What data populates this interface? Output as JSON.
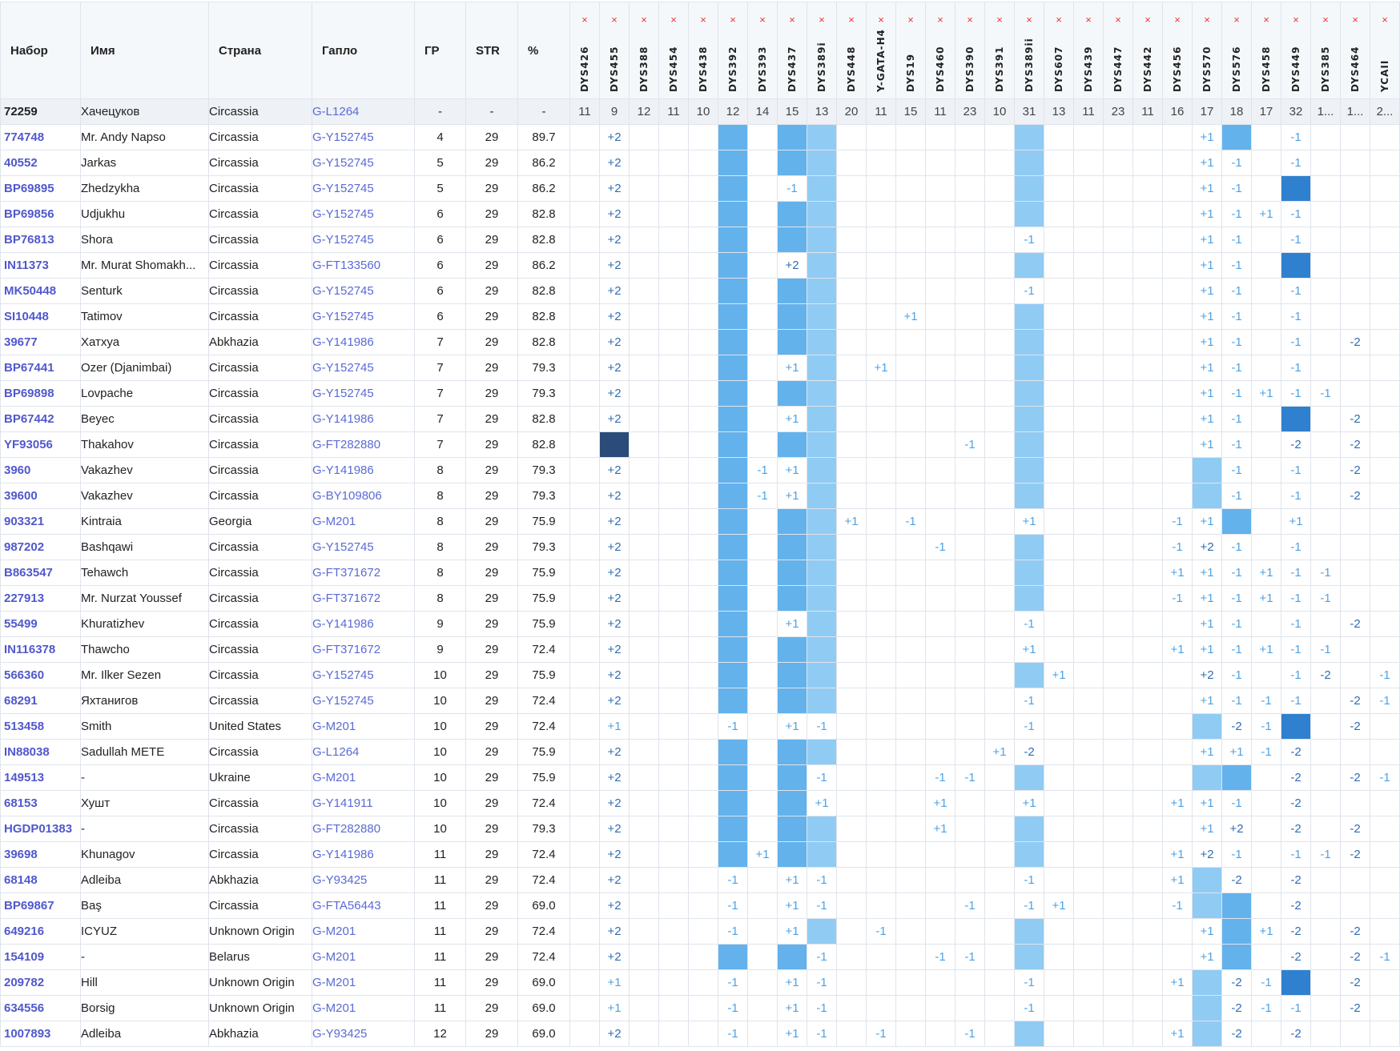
{
  "columns": {
    "kit": "Набор",
    "name": "Имя",
    "country": "Страна",
    "haplo": "Гапло",
    "gd": "ГР",
    "str": "STR",
    "pct": "%"
  },
  "remove_marker_symbol": "×",
  "markers": [
    "DYS426",
    "DYS455",
    "DYS388",
    "DYS454",
    "DYS438",
    "DYS392",
    "DYS393",
    "DYS437",
    "DYS389i",
    "DYS448",
    "Y-GATA-H4",
    "DYS19",
    "DYS460",
    "DYS390",
    "DYS391",
    "DYS389ii",
    "DYS607",
    "DYS439",
    "DYS447",
    "DYS442",
    "DYS456",
    "DYS570",
    "DYS576",
    "DYS458",
    "DYS449",
    "DYS385",
    "DYS464",
    "YCAII"
  ],
  "colors": {
    "fill_M": "#63b2ec",
    "fill_L": "#90cbf4",
    "fill_D": "#2f80cf",
    "fill_N": "#2b4c7a",
    "link": "#5058cc",
    "remove": "#e53935"
  },
  "reference": {
    "kit": "72259",
    "name": "Хачецуков",
    "country": "Circassia",
    "haplo": "G-L1264",
    "gd": "-",
    "str": "-",
    "pct": "-",
    "values": [
      "11",
      "9",
      "12",
      "11",
      "10",
      "12",
      "14",
      "15",
      "13",
      "20",
      "11",
      "15",
      "11",
      "23",
      "10",
      "31",
      "13",
      "11",
      "23",
      "11",
      "16",
      "17",
      "18",
      "17",
      "32",
      "1...",
      "1...",
      "2..."
    ]
  },
  "rows": [
    {
      "kit": "774748",
      "name": "Mr. Andy Napso",
      "country": "Circassia",
      "haplo": "G-Y152745",
      "gd": "4",
      "str": "29",
      "pct": "89.7",
      "cells": {
        "1": "+2",
        "5": "M",
        "7": "M",
        "8": "L",
        "15": "L",
        "21": "+1",
        "22": "M",
        "24": "-1"
      }
    },
    {
      "kit": "40552",
      "name": "Jarkas",
      "country": "Circassia",
      "haplo": "G-Y152745",
      "gd": "5",
      "str": "29",
      "pct": "86.2",
      "cells": {
        "1": "+2",
        "5": "M",
        "7": "M",
        "8": "L",
        "15": "L",
        "21": "+1",
        "22": "-1",
        "24": "-1"
      }
    },
    {
      "kit": "BP69895",
      "name": "Zhedzykha",
      "country": "Circassia",
      "haplo": "G-Y152745",
      "gd": "5",
      "str": "29",
      "pct": "86.2",
      "cells": {
        "1": "+2",
        "5": "M",
        "7": "-1",
        "8": "L",
        "15": "L",
        "21": "+1",
        "22": "-1",
        "24": "D"
      }
    },
    {
      "kit": "BP69856",
      "name": "Udjukhu",
      "country": "Circassia",
      "haplo": "G-Y152745",
      "gd": "6",
      "str": "29",
      "pct": "82.8",
      "cells": {
        "1": "+2",
        "5": "M",
        "7": "M",
        "8": "L",
        "15": "L",
        "21": "+1",
        "22": "-1",
        "23": "+1",
        "24": "-1"
      }
    },
    {
      "kit": "BP76813",
      "name": "Shora",
      "country": "Circassia",
      "haplo": "G-Y152745",
      "gd": "6",
      "str": "29",
      "pct": "82.8",
      "cells": {
        "1": "+2",
        "5": "M",
        "7": "M",
        "8": "L",
        "15": "-1",
        "21": "+1",
        "22": "-1",
        "24": "-1"
      }
    },
    {
      "kit": "IN11373",
      "name": "Mr. Murat Shomakh...",
      "country": "Circassia",
      "haplo": "G-FT133560",
      "gd": "6",
      "str": "29",
      "pct": "86.2",
      "cells": {
        "1": "+2",
        "5": "M",
        "7": "+2",
        "8": "L",
        "15": "L",
        "21": "+1",
        "22": "-1",
        "24": "D"
      }
    },
    {
      "kit": "MK50448",
      "name": "Senturk",
      "country": "Circassia",
      "haplo": "G-Y152745",
      "gd": "6",
      "str": "29",
      "pct": "82.8",
      "cells": {
        "1": "+2",
        "5": "M",
        "7": "M",
        "8": "L",
        "15": "-1",
        "21": "+1",
        "22": "-1",
        "24": "-1"
      }
    },
    {
      "kit": "SI10448",
      "name": "Tatimov",
      "country": "Circassia",
      "haplo": "G-Y152745",
      "gd": "6",
      "str": "29",
      "pct": "82.8",
      "cells": {
        "1": "+2",
        "5": "M",
        "7": "M",
        "8": "L",
        "11": "+1",
        "15": "L",
        "21": "+1",
        "22": "-1",
        "24": "-1"
      }
    },
    {
      "kit": "39677",
      "name": "Хатхуа",
      "country": "Abkhazia",
      "haplo": "G-Y141986",
      "gd": "7",
      "str": "29",
      "pct": "82.8",
      "cells": {
        "1": "+2",
        "5": "M",
        "7": "M",
        "8": "L",
        "15": "L",
        "21": "+1",
        "22": "-1",
        "24": "-1",
        "26": "-2"
      }
    },
    {
      "kit": "BP67441",
      "name": "Ozer (Djanimbai)",
      "country": "Circassia",
      "haplo": "G-Y152745",
      "gd": "7",
      "str": "29",
      "pct": "79.3",
      "cells": {
        "1": "+2",
        "5": "M",
        "7": "+1",
        "8": "L",
        "10": "+1",
        "15": "L",
        "21": "+1",
        "22": "-1",
        "24": "-1"
      }
    },
    {
      "kit": "BP69898",
      "name": "Lovpache",
      "country": "Circassia",
      "haplo": "G-Y152745",
      "gd": "7",
      "str": "29",
      "pct": "79.3",
      "cells": {
        "1": "+2",
        "5": "M",
        "7": "M",
        "8": "L",
        "15": "L",
        "21": "+1",
        "22": "-1",
        "23": "+1",
        "24": "-1",
        "25": "-1"
      }
    },
    {
      "kit": "BP67442",
      "name": "Beyec",
      "country": "Circassia",
      "haplo": "G-Y141986",
      "gd": "7",
      "str": "29",
      "pct": "82.8",
      "cells": {
        "1": "+2",
        "5": "M",
        "7": "+1",
        "8": "L",
        "15": "L",
        "21": "+1",
        "22": "-1",
        "24": "D",
        "26": "-2"
      }
    },
    {
      "kit": "YF93056",
      "name": "Thakahov",
      "country": "Circassia",
      "haplo": "G-FT282880",
      "gd": "7",
      "str": "29",
      "pct": "82.8",
      "cells": {
        "1": "N",
        "5": "M",
        "7": "M",
        "8": "L",
        "13": "-1",
        "15": "L",
        "21": "+1",
        "22": "-1",
        "24": "-2",
        "26": "-2"
      }
    },
    {
      "kit": "3960",
      "name": "Vakazhev",
      "country": "Circassia",
      "haplo": "G-Y141986",
      "gd": "8",
      "str": "29",
      "pct": "79.3",
      "cells": {
        "1": "+2",
        "5": "M",
        "6": "-1",
        "7": "+1",
        "8": "L",
        "15": "L",
        "21": "L",
        "22": "-1",
        "24": "-1",
        "26": "-2"
      }
    },
    {
      "kit": "39600",
      "name": "Vakazhev",
      "country": "Circassia",
      "haplo": "G-BY109806",
      "gd": "8",
      "str": "29",
      "pct": "79.3",
      "cells": {
        "1": "+2",
        "5": "M",
        "6": "-1",
        "7": "+1",
        "8": "L",
        "15": "L",
        "21": "L",
        "22": "-1",
        "24": "-1",
        "26": "-2"
      }
    },
    {
      "kit": "903321",
      "name": "Kintraia",
      "country": "Georgia",
      "haplo": "G-M201",
      "gd": "8",
      "str": "29",
      "pct": "75.9",
      "cells": {
        "1": "+2",
        "5": "M",
        "7": "M",
        "8": "L",
        "9": "+1",
        "11": "-1",
        "15": "+1",
        "20": "-1",
        "21": "+1",
        "22": "M",
        "24": "+1"
      }
    },
    {
      "kit": "987202",
      "name": "Bashqawi",
      "country": "Circassia",
      "haplo": "G-Y152745",
      "gd": "8",
      "str": "29",
      "pct": "79.3",
      "cells": {
        "1": "+2",
        "5": "M",
        "7": "M",
        "8": "L",
        "12": "-1",
        "15": "L",
        "20": "-1",
        "21": "+2",
        "22": "-1",
        "24": "-1"
      }
    },
    {
      "kit": "B863547",
      "name": "Tehawch",
      "country": "Circassia",
      "haplo": "G-FT371672",
      "gd": "8",
      "str": "29",
      "pct": "75.9",
      "cells": {
        "1": "+2",
        "5": "M",
        "7": "M",
        "8": "L",
        "15": "L",
        "20": "+1",
        "21": "+1",
        "22": "-1",
        "23": "+1",
        "24": "-1",
        "25": "-1"
      }
    },
    {
      "kit": "227913",
      "name": "Mr. Nurzat Youssef",
      "country": "Circassia",
      "haplo": "G-FT371672",
      "gd": "8",
      "str": "29",
      "pct": "75.9",
      "cells": {
        "1": "+2",
        "5": "M",
        "7": "M",
        "8": "L",
        "15": "L",
        "20": "-1",
        "21": "+1",
        "22": "-1",
        "23": "+1",
        "24": "-1",
        "25": "-1"
      }
    },
    {
      "kit": "55499",
      "name": "Khuratizhev",
      "country": "Circassia",
      "haplo": "G-Y141986",
      "gd": "9",
      "str": "29",
      "pct": "75.9",
      "cells": {
        "1": "+2",
        "5": "M",
        "7": "+1",
        "8": "L",
        "15": "-1",
        "21": "+1",
        "22": "-1",
        "24": "-1",
        "26": "-2"
      }
    },
    {
      "kit": "IN116378",
      "name": "Thawcho",
      "country": "Circassia",
      "haplo": "G-FT371672",
      "gd": "9",
      "str": "29",
      "pct": "72.4",
      "cells": {
        "1": "+2",
        "5": "M",
        "7": "M",
        "8": "L",
        "15": "+1",
        "20": "+1",
        "21": "+1",
        "22": "-1",
        "23": "+1",
        "24": "-1",
        "25": "-1"
      }
    },
    {
      "kit": "566360",
      "name": "Mr. Ilker Sezen",
      "country": "Circassia",
      "haplo": "G-Y152745",
      "gd": "10",
      "str": "29",
      "pct": "75.9",
      "cells": {
        "1": "+2",
        "5": "M",
        "7": "M",
        "8": "L",
        "15": "L",
        "16": "+1",
        "21": "+2",
        "22": "-1",
        "24": "-1",
        "25": "-2",
        "27": "-1"
      }
    },
    {
      "kit": "68291",
      "name": "Яхтанигов",
      "country": "Circassia",
      "haplo": "G-Y152745",
      "gd": "10",
      "str": "29",
      "pct": "72.4",
      "cells": {
        "1": "+2",
        "5": "M",
        "7": "M",
        "8": "L",
        "15": "-1",
        "21": "+1",
        "22": "-1",
        "23": "-1",
        "24": "-1",
        "26": "-2",
        "27": "-1"
      }
    },
    {
      "kit": "513458",
      "name": "Smith",
      "country": "United States",
      "haplo": "G-M201",
      "gd": "10",
      "str": "29",
      "pct": "72.4",
      "cells": {
        "1": "+1",
        "5": "-1",
        "7": "+1",
        "8": "-1",
        "15": "-1",
        "21": "L",
        "22": "-2",
        "23": "-1",
        "24": "D",
        "26": "-2"
      }
    },
    {
      "kit": "IN88038",
      "name": "Sadullah METE",
      "country": "Circassia",
      "haplo": "G-L1264",
      "gd": "10",
      "str": "29",
      "pct": "75.9",
      "cells": {
        "1": "+2",
        "5": "M",
        "7": "M",
        "8": "L",
        "14": "+1",
        "15": "-2",
        "21": "+1",
        "22": "+1",
        "23": "-1",
        "24": "-2"
      }
    },
    {
      "kit": "149513",
      "name": "-",
      "country": "Ukraine",
      "haplo": "G-M201",
      "gd": "10",
      "str": "29",
      "pct": "75.9",
      "cells": {
        "1": "+2",
        "5": "M",
        "7": "M",
        "8": "-1",
        "12": "-1",
        "13": "-1",
        "15": "L",
        "21": "L",
        "22": "M",
        "24": "-2",
        "26": "-2",
        "27": "-1"
      }
    },
    {
      "kit": "68153",
      "name": "Хушт",
      "country": "Circassia",
      "haplo": "G-Y141911",
      "gd": "10",
      "str": "29",
      "pct": "72.4",
      "cells": {
        "1": "+2",
        "5": "M",
        "7": "M",
        "8": "+1",
        "12": "+1",
        "15": "+1",
        "20": "+1",
        "21": "+1",
        "22": "-1",
        "24": "-2"
      }
    },
    {
      "kit": "HGDP01383",
      "name": "-",
      "country": "Circassia",
      "haplo": "G-FT282880",
      "gd": "10",
      "str": "29",
      "pct": "79.3",
      "cells": {
        "1": "+2",
        "5": "M",
        "7": "M",
        "8": "L",
        "12": "+1",
        "15": "L",
        "21": "+1",
        "22": "+2",
        "24": "-2",
        "26": "-2"
      }
    },
    {
      "kit": "39698",
      "name": "Khunagov",
      "country": "Circassia",
      "haplo": "G-Y141986",
      "gd": "11",
      "str": "29",
      "pct": "72.4",
      "cells": {
        "1": "+2",
        "5": "M",
        "6": "+1",
        "7": "M",
        "8": "L",
        "15": "L",
        "20": "+1",
        "21": "+2",
        "22": "-1",
        "24": "-1",
        "25": "-1",
        "26": "-2"
      }
    },
    {
      "kit": "68148",
      "name": "Adleiba",
      "country": "Abkhazia",
      "haplo": "G-Y93425",
      "gd": "11",
      "str": "29",
      "pct": "72.4",
      "cells": {
        "1": "+2",
        "5": "-1",
        "7": "+1",
        "8": "-1",
        "15": "-1",
        "20": "+1",
        "21": "L",
        "22": "-2",
        "24": "-2"
      }
    },
    {
      "kit": "BP69867",
      "name": "Baş",
      "country": "Circassia",
      "haplo": "G-FTA56443",
      "gd": "11",
      "str": "29",
      "pct": "69.0",
      "cells": {
        "1": "+2",
        "5": "-1",
        "7": "+1",
        "8": "-1",
        "13": "-1",
        "15": "-1",
        "16": "+1",
        "20": "-1",
        "21": "L",
        "22": "M",
        "24": "-2"
      }
    },
    {
      "kit": "649216",
      "name": "ICYUZ",
      "country": "Unknown Origin",
      "haplo": "G-M201",
      "gd": "11",
      "str": "29",
      "pct": "72.4",
      "cells": {
        "1": "+2",
        "5": "-1",
        "7": "+1",
        "8": "L",
        "10": "-1",
        "15": "L",
        "21": "+1",
        "22": "M",
        "23": "+1",
        "24": "-2",
        "26": "-2"
      }
    },
    {
      "kit": "154109",
      "name": "-",
      "country": "Belarus",
      "haplo": "G-M201",
      "gd": "11",
      "str": "29",
      "pct": "72.4",
      "cells": {
        "1": "+2",
        "5": "M",
        "7": "M",
        "8": "-1",
        "12": "-1",
        "13": "-1",
        "15": "L",
        "21": "+1",
        "22": "M",
        "24": "-2",
        "26": "-2",
        "27": "-1"
      }
    },
    {
      "kit": "209782",
      "name": "Hill",
      "country": "Unknown Origin",
      "haplo": "G-M201",
      "gd": "11",
      "str": "29",
      "pct": "69.0",
      "cells": {
        "1": "+1",
        "5": "-1",
        "7": "+1",
        "8": "-1",
        "15": "-1",
        "20": "+1",
        "21": "L",
        "22": "-2",
        "23": "-1",
        "24": "D",
        "26": "-2"
      }
    },
    {
      "kit": "634556",
      "name": "Borsig",
      "country": "Unknown Origin",
      "haplo": "G-M201",
      "gd": "11",
      "str": "29",
      "pct": "69.0",
      "cells": {
        "1": "+1",
        "5": "-1",
        "7": "+1",
        "8": "-1",
        "15": "-1",
        "21": "L",
        "22": "-2",
        "23": "-1",
        "24": "-1",
        "26": "-2"
      }
    },
    {
      "kit": "1007893",
      "name": "Adleiba",
      "country": "Abkhazia",
      "haplo": "G-Y93425",
      "gd": "12",
      "str": "29",
      "pct": "69.0",
      "cells": {
        "1": "+2",
        "5": "-1",
        "7": "+1",
        "8": "-1",
        "10": "-1",
        "13": "-1",
        "15": "L",
        "20": "+1",
        "21": "L",
        "22": "-2",
        "24": "-2"
      }
    }
  ]
}
